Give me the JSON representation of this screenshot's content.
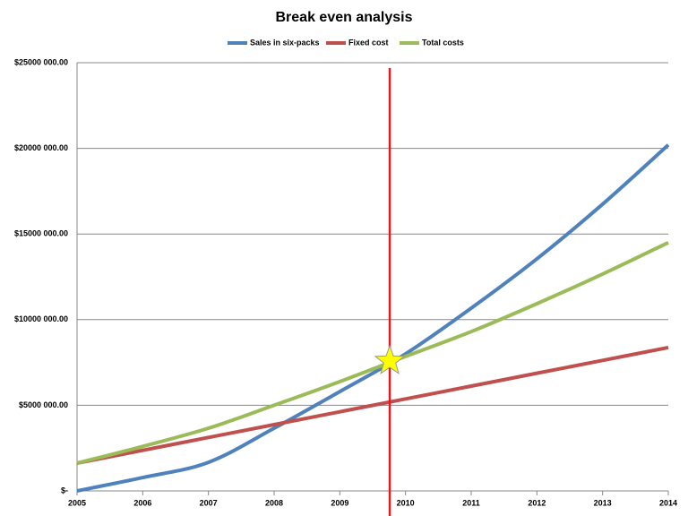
{
  "chart_data": {
    "type": "line",
    "title": "Break even analysis",
    "x": [
      2005,
      2006,
      2007,
      2008,
      2009,
      2010,
      2011,
      2012,
      2013,
      2014
    ],
    "series": [
      {
        "name": "Sales in six-packs",
        "color": "#4f81bd",
        "values": [
          0,
          780000,
          1670000,
          3660000,
          5800000,
          8000000,
          10670000,
          13550000,
          16740000,
          20200000
        ]
      },
      {
        "name": "Fixed cost",
        "color": "#c0504d",
        "values": [
          1620000,
          2370000,
          3120000,
          3870000,
          4620000,
          5370000,
          6120000,
          6870000,
          7620000,
          8370000
        ]
      },
      {
        "name": "Total costs",
        "color": "#9bbb59",
        "values": [
          1620000,
          2600000,
          3660000,
          5000000,
          6380000,
          7850000,
          9300000,
          10930000,
          12660000,
          14500000
        ]
      }
    ],
    "xlim": [
      2005,
      2014
    ],
    "xticks": [
      2005,
      2006,
      2007,
      2008,
      2009,
      2010,
      2011,
      2012,
      2013,
      2014
    ],
    "ylim": [
      0,
      25000000
    ],
    "yticks": [
      {
        "value": 0,
        "label": "$-"
      },
      {
        "value": 5000000,
        "label": "$5000 000.00"
      },
      {
        "value": 10000000,
        "label": "$10000 000.00"
      },
      {
        "value": 15000000,
        "label": "$15000 000.00"
      },
      {
        "value": 20000000,
        "label": "$20000 000.00"
      },
      {
        "value": 25000000,
        "label": "$25000 000.00"
      }
    ],
    "grid": true,
    "legend": "top",
    "break_even": {
      "x": 2009.76,
      "y": 7580000,
      "line_color": "#e41a1c",
      "star_color": "#ffff00"
    }
  }
}
